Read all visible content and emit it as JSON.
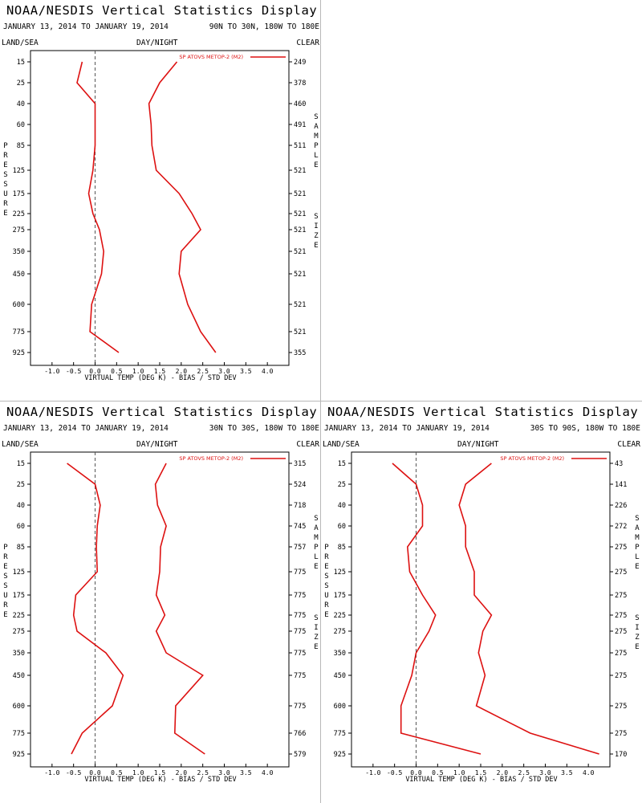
{
  "page": {
    "x_axis_label": "VIRTUAL TEMP (DEG K) - BIAS / STD DEV",
    "left_vertical_label": "PRESSURE",
    "right_vertical_label_1": "SAMPLE",
    "right_vertical_label_2": "SIZE",
    "land_sea_label": "LAND/SEA",
    "day_night_label": "DAY/NIGHT",
    "clear_label": "CLEAR",
    "colors": {
      "series": "#dd1111",
      "zero_line": "#555555",
      "axis": "#000000"
    }
  },
  "chart_data": [
    {
      "type": "line",
      "title": "NOAA/NESDIS Vertical Statistics Display",
      "subtitle": "JANUARY 13, 2014 TO JANUARY 19, 2014",
      "region": "90N TO 30N, 180W TO 180E",
      "xlabel": "VIRTUAL TEMP (DEG K) - BIAS / STD DEV",
      "ylabel": "PRESSURE",
      "x_ticks": [
        "-1.0",
        "-0.5",
        "0.0",
        "0.5",
        "1.0",
        "1.5",
        "2.0",
        "2.5",
        "3.0",
        "3.5",
        "4.0"
      ],
      "xlim": [
        -1.5,
        4.5
      ],
      "y_levels": [
        15,
        25,
        40,
        60,
        85,
        125,
        175,
        225,
        275,
        350,
        450,
        600,
        775,
        925
      ],
      "y_tick_labels": [
        "15",
        "25",
        "40",
        "60",
        "85",
        "125",
        "175",
        "225",
        "275",
        "350",
        "450",
        "600",
        "775",
        "925"
      ],
      "sample_size": [
        "249",
        "378",
        "460",
        "491",
        "511",
        "521",
        "521",
        "521",
        "521",
        "521",
        "521",
        "521",
        "521",
        "355"
      ],
      "legend": "SP ATOVS METOP-2 (M2)",
      "legend_position": "top-right",
      "series": [
        {
          "name": "bias",
          "values": [
            -0.3,
            -0.42,
            0.0,
            0.0,
            0.0,
            -0.05,
            -0.15,
            -0.05,
            0.1,
            0.2,
            0.15,
            -0.08,
            -0.12,
            0.55
          ]
        },
        {
          "name": "std dev",
          "values": [
            1.9,
            1.5,
            1.25,
            1.3,
            1.32,
            1.42,
            1.95,
            2.25,
            2.45,
            2.0,
            1.95,
            2.15,
            2.45,
            2.8
          ]
        }
      ]
    },
    {
      "type": "line",
      "title": "NOAA/NESDIS Vertical Statistics Display",
      "subtitle": "JANUARY 13, 2014 TO JANUARY 19, 2014",
      "region": "30N TO 30S, 180W TO 180E",
      "xlabel": "VIRTUAL TEMP (DEG K) - BIAS / STD DEV",
      "ylabel": "PRESSURE",
      "x_ticks": [
        "-1.0",
        "-0.5",
        "0.0",
        "0.5",
        "1.0",
        "1.5",
        "2.0",
        "2.5",
        "3.0",
        "3.5",
        "4.0"
      ],
      "xlim": [
        -1.5,
        4.5
      ],
      "y_levels": [
        15,
        25,
        40,
        60,
        85,
        125,
        175,
        225,
        275,
        350,
        450,
        600,
        775,
        925
      ],
      "y_tick_labels": [
        "15",
        "25",
        "40",
        "60",
        "85",
        "125",
        "175",
        "225",
        "275",
        "350",
        "450",
        "600",
        "775",
        "925"
      ],
      "sample_size": [
        "315",
        "524",
        "718",
        "745",
        "757",
        "775",
        "775",
        "775",
        "775",
        "775",
        "775",
        "775",
        "766",
        "579"
      ],
      "legend": "SP ATOVS METOP-2 (M2)",
      "legend_position": "top-right",
      "series": [
        {
          "name": "bias",
          "values": [
            -0.65,
            0.0,
            0.12,
            0.05,
            0.03,
            0.05,
            -0.45,
            -0.5,
            -0.42,
            0.25,
            0.65,
            0.4,
            -0.3,
            -0.55
          ]
        },
        {
          "name": "std dev",
          "values": [
            1.65,
            1.4,
            1.45,
            1.65,
            1.52,
            1.5,
            1.42,
            1.62,
            1.42,
            1.65,
            2.5,
            1.87,
            1.85,
            2.55
          ]
        }
      ]
    },
    {
      "type": "line",
      "title": "NOAA/NESDIS Vertical Statistics Display",
      "subtitle": "JANUARY 13, 2014 TO JANUARY 19, 2014",
      "region": "30S TO 90S, 180W TO 180E",
      "xlabel": "VIRTUAL TEMP (DEG K) - BIAS / STD DEV",
      "ylabel": "PRESSURE",
      "x_ticks": [
        "-1.0",
        "-0.5",
        "0.0",
        "0.5",
        "1.0",
        "1.5",
        "2.0",
        "2.5",
        "3.0",
        "3.5",
        "4.0"
      ],
      "xlim": [
        -1.5,
        4.5
      ],
      "y_levels": [
        15,
        25,
        40,
        60,
        85,
        125,
        175,
        225,
        275,
        350,
        450,
        600,
        775,
        925
      ],
      "y_tick_labels": [
        "15",
        "25",
        "40",
        "60",
        "85",
        "125",
        "175",
        "225",
        "275",
        "350",
        "450",
        "600",
        "775",
        "925"
      ],
      "sample_size": [
        "43",
        "141",
        "226",
        "272",
        "275",
        "275",
        "275",
        "275",
        "275",
        "275",
        "275",
        "275",
        "275",
        "170"
      ],
      "legend": "SP ATOVS METOP-2 (M2)",
      "legend_position": "top-right",
      "series": [
        {
          "name": "bias",
          "values": [
            -0.55,
            0.0,
            0.15,
            0.15,
            -0.2,
            -0.15,
            0.15,
            0.45,
            0.3,
            0.0,
            -0.1,
            -0.35,
            -0.35,
            1.5
          ]
        },
        {
          "name": "std dev",
          "values": [
            1.75,
            1.15,
            1.0,
            1.15,
            1.15,
            1.35,
            1.35,
            1.75,
            1.55,
            1.45,
            1.6,
            1.4,
            2.65,
            4.25
          ]
        }
      ]
    }
  ]
}
